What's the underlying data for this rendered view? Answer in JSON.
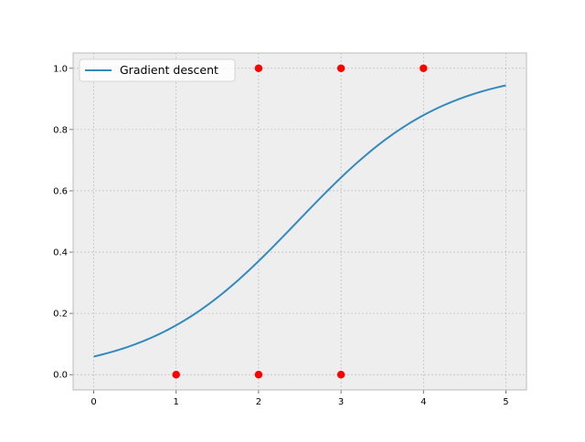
{
  "chart_data": {
    "type": "line",
    "title": "",
    "xlabel": "",
    "ylabel": "",
    "xlim": [
      -0.25,
      5.25
    ],
    "ylim": [
      -0.05,
      1.05
    ],
    "xticks": [
      0,
      1,
      2,
      3,
      4,
      5
    ],
    "yticks": [
      0.0,
      0.2,
      0.4,
      0.6,
      0.8,
      1.0
    ],
    "xtick_labels": [
      "0",
      "1",
      "2",
      "3",
      "4",
      "5"
    ],
    "ytick_labels": [
      "0.0",
      "0.2",
      "0.4",
      "0.6",
      "0.8",
      "1.0"
    ],
    "grid": true,
    "legend_position": "top-left",
    "series": [
      {
        "name": "Gradient descent",
        "kind": "line",
        "color": "#348abd",
        "model": "logistic",
        "params": {
          "intercept": -2.77,
          "slope": 1.12
        },
        "x_range": [
          0,
          5
        ],
        "points": [
          [
            0.0,
            0.059
          ],
          [
            0.5,
            0.098
          ],
          [
            1.0,
            0.16
          ],
          [
            1.5,
            0.25
          ],
          [
            2.0,
            0.37
          ],
          [
            2.5,
            0.5
          ],
          [
            3.0,
            0.64
          ],
          [
            3.5,
            0.76
          ],
          [
            4.0,
            0.84
          ],
          [
            4.5,
            0.9
          ],
          [
            5.0,
            0.94
          ]
        ]
      },
      {
        "kind": "scatter",
        "color": "#ff0000",
        "points": [
          [
            1,
            0
          ],
          [
            2,
            0
          ],
          [
            3,
            0
          ],
          [
            2,
            1
          ],
          [
            3,
            1
          ],
          [
            4,
            1
          ]
        ]
      }
    ],
    "colors": {
      "axes_bg": "#eeeeee",
      "grid": "#b2b2b2",
      "spine": "#bcbcbc"
    }
  }
}
